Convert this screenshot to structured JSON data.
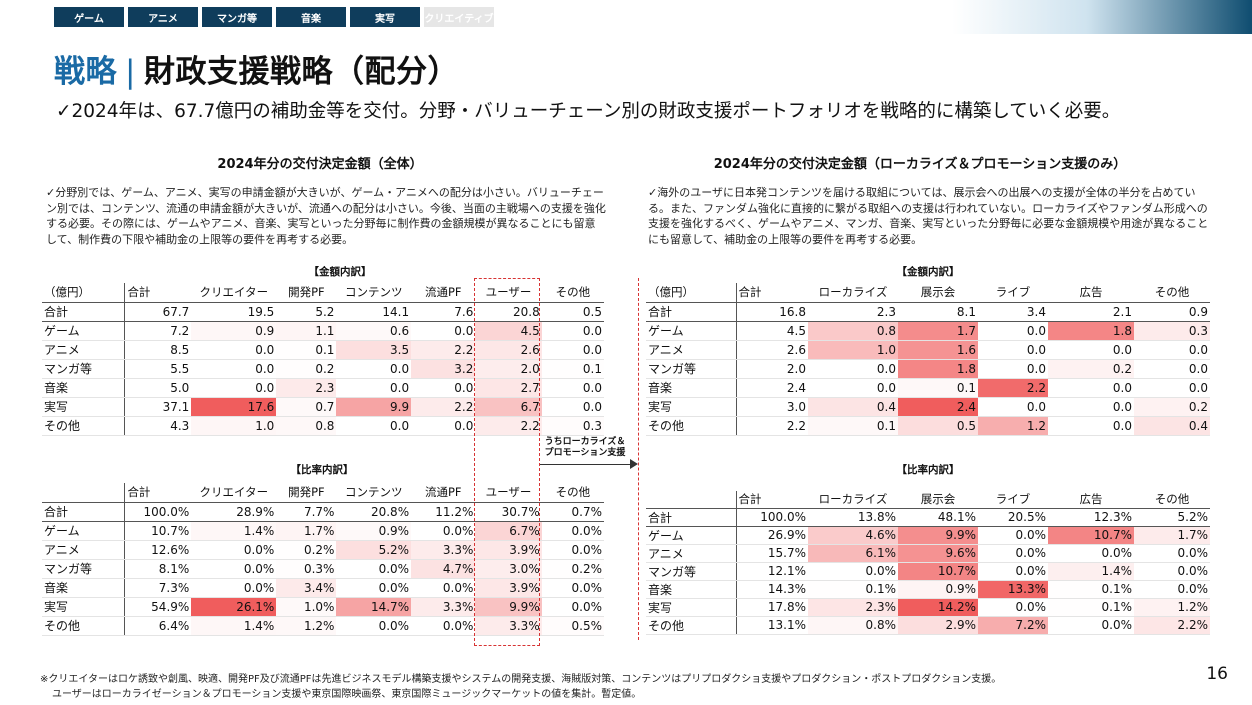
{
  "tabs": [
    "ゲーム",
    "アニメ",
    "マンガ等",
    "音楽",
    "実写",
    "クリエイティブ"
  ],
  "title": {
    "accent": "戦略",
    "sep": "|",
    "main": "財政支援戦略（配分）"
  },
  "subtitle": "✓2024年は、67.7億円の補助金等を交付。分野・バリューチェーン別の財政支援ポートフォリオを戦略的に構築していく必要。",
  "left": {
    "title": "2024年分の交付決定金額（全体）",
    "desc": "✓分野別では、ゲーム、アニメ、実写の申請金額が大きいが、ゲーム・アニメへの配分は小さい。バリューチェーン別では、コンテンツ、流通の申請金額が大きいが、流通への配分は小さい。今後、当面の主戦場への支援を強化する必要。その際には、ゲームやアニメ、音楽、実写といった分野毎に制作費の金額規模が異なることにも留意して、制作費の下限や補助金の上限等の要件を再考する必要。",
    "amount_label": "【金額内訳】",
    "ratio_label": "【比率内訳】",
    "amount_headers": [
      "（億円）",
      "合計",
      "クリエイター",
      "開発PF",
      "コンテンツ",
      "流通PF",
      "ユーザー",
      "その他"
    ],
    "ratio_headers": [
      "",
      "合計",
      "クリエイター",
      "開発PF",
      "コンテンツ",
      "流通PF",
      "ユーザー",
      "その他"
    ],
    "amount_rows": [
      [
        "合計",
        "67.7",
        "19.5",
        "5.2",
        "14.1",
        "7.6",
        "20.8",
        "0.5"
      ],
      [
        "ゲーム",
        "7.2",
        "0.9",
        "1.1",
        "0.6",
        "0.0",
        "4.5",
        "0.0"
      ],
      [
        "アニメ",
        "8.5",
        "0.0",
        "0.1",
        "3.5",
        "2.2",
        "2.6",
        "0.0"
      ],
      [
        "マンガ等",
        "5.5",
        "0.0",
        "0.2",
        "0.0",
        "3.2",
        "2.0",
        "0.1"
      ],
      [
        "音楽",
        "5.0",
        "0.0",
        "2.3",
        "0.0",
        "0.0",
        "2.7",
        "0.0"
      ],
      [
        "実写",
        "37.1",
        "17.6",
        "0.7",
        "9.9",
        "2.2",
        "6.7",
        "0.0"
      ],
      [
        "その他",
        "4.3",
        "1.0",
        "0.8",
        "0.0",
        "0.0",
        "2.2",
        "0.3"
      ]
    ],
    "ratio_rows": [
      [
        "合計",
        "100.0%",
        "28.9%",
        "7.7%",
        "20.8%",
        "11.2%",
        "30.7%",
        "0.7%"
      ],
      [
        "ゲーム",
        "10.7%",
        "1.4%",
        "1.7%",
        "0.9%",
        "0.0%",
        "6.7%",
        "0.0%"
      ],
      [
        "アニメ",
        "12.6%",
        "0.0%",
        "0.2%",
        "5.2%",
        "3.3%",
        "3.9%",
        "0.0%"
      ],
      [
        "マンガ等",
        "8.1%",
        "0.0%",
        "0.3%",
        "0.0%",
        "4.7%",
        "3.0%",
        "0.2%"
      ],
      [
        "音楽",
        "7.3%",
        "0.0%",
        "3.4%",
        "0.0%",
        "0.0%",
        "3.9%",
        "0.0%"
      ],
      [
        "実写",
        "54.9%",
        "26.1%",
        "1.0%",
        "14.7%",
        "3.3%",
        "9.9%",
        "0.0%"
      ],
      [
        "その他",
        "6.4%",
        "1.4%",
        "1.2%",
        "0.0%",
        "0.0%",
        "3.3%",
        "0.5%"
      ]
    ]
  },
  "arrow_label": [
    "うちローカライズ＆",
    "プロモーション支援"
  ],
  "right": {
    "title": "2024年分の交付決定金額（ローカライズ＆プロモーション支援のみ）",
    "desc": "✓海外のユーザに日本発コンテンツを届ける取組については、展示会への出展への支援が全体の半分を占めている。また、ファンダム強化に直接的に繋がる取組への支援は行われていない。ローカライズやファンダム形成への支援を強化するべく、ゲームやアニメ、マンガ、音楽、実写といった分野毎に必要な金額規模や用途が異なることにも留意して、補助金の上限等の要件を再考する必要。",
    "amount_label": "【金額内訳】",
    "ratio_label": "【比率内訳】",
    "amount_headers": [
      "（億円）",
      "合計",
      "ローカライズ",
      "展示会",
      "ライブ",
      "広告",
      "その他"
    ],
    "ratio_headers": [
      "",
      "合計",
      "ローカライズ",
      "展示会",
      "ライブ",
      "広告",
      "その他"
    ],
    "amount_rows": [
      [
        "合計",
        "16.8",
        "2.3",
        "8.1",
        "3.4",
        "2.1",
        "0.9"
      ],
      [
        "ゲーム",
        "4.5",
        "0.8",
        "1.7",
        "0.0",
        "1.8",
        "0.3"
      ],
      [
        "アニメ",
        "2.6",
        "1.0",
        "1.6",
        "0.0",
        "0.0",
        "0.0"
      ],
      [
        "マンガ等",
        "2.0",
        "0.0",
        "1.8",
        "0.0",
        "0.2",
        "0.0"
      ],
      [
        "音楽",
        "2.4",
        "0.0",
        "0.1",
        "2.2",
        "0.0",
        "0.0"
      ],
      [
        "実写",
        "3.0",
        "0.4",
        "2.4",
        "0.0",
        "0.0",
        "0.2"
      ],
      [
        "その他",
        "2.2",
        "0.1",
        "0.5",
        "1.2",
        "0.0",
        "0.4"
      ]
    ],
    "ratio_rows": [
      [
        "合計",
        "100.0%",
        "13.8%",
        "48.1%",
        "20.5%",
        "12.3%",
        "5.2%"
      ],
      [
        "ゲーム",
        "26.9%",
        "4.6%",
        "9.9%",
        "0.0%",
        "10.7%",
        "1.7%"
      ],
      [
        "アニメ",
        "15.7%",
        "6.1%",
        "9.6%",
        "0.0%",
        "0.0%",
        "0.0%"
      ],
      [
        "マンガ等",
        "12.1%",
        "0.0%",
        "10.7%",
        "0.0%",
        "1.4%",
        "0.0%"
      ],
      [
        "音楽",
        "14.3%",
        "0.1%",
        "0.9%",
        "13.3%",
        "0.1%",
        "0.0%"
      ],
      [
        "実写",
        "17.8%",
        "2.3%",
        "14.2%",
        "0.0%",
        "0.1%",
        "1.2%"
      ],
      [
        "その他",
        "13.1%",
        "0.8%",
        "2.9%",
        "7.2%",
        "0.0%",
        "2.2%"
      ]
    ]
  },
  "heat_color": "#ee4b4b",
  "footnote": [
    "※クリエイターはロケ誘致や創風、映適、開発PF及び流通PFは先進ビジネスモデル構築支援やシステムの開発支援、海賊版対策、コンテンツはプリプロダクショ支援やプロダクション・ポストプロダクション支援。",
    "ユーザーはローカライゼーション＆プロモーション支援や東京国際映画祭、東京国際ミュージックマーケットの値を集計。暫定値。"
  ],
  "page_number": "16"
}
